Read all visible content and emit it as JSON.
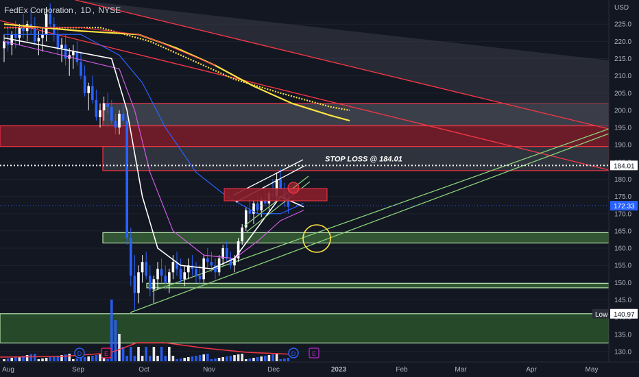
{
  "header": {
    "symbol_name": "FedEx Corporation",
    "interval": "1D",
    "exchange": "NYSE"
  },
  "chart_data": {
    "type": "candlestick",
    "currency_label": "USD",
    "y_axis": {
      "min": 127,
      "max": 232,
      "ticks": [
        130,
        135,
        140,
        145,
        150,
        155,
        160,
        165,
        170,
        175,
        180,
        185,
        190,
        195,
        200,
        205,
        210,
        215,
        220,
        225
      ]
    },
    "x_axis": {
      "labels": [
        "Aug",
        "Sep",
        "Oct",
        "Nov",
        "Dec",
        "2023",
        "Feb",
        "Mar",
        "Apr",
        "May"
      ]
    },
    "price_tags": [
      {
        "label": "",
        "value": "184.01",
        "price": 184.01,
        "color": "#ffffff",
        "text_color": "#131722"
      },
      {
        "label": "",
        "value": "172.33",
        "price": 172.33,
        "color": "#2962ff",
        "text_color": "#ffffff"
      },
      {
        "label": "Low",
        "value": "140.97",
        "price": 140.97,
        "color": "#ffffff",
        "text_color": "#131722"
      }
    ],
    "annotations": [
      {
        "text": "STOP LOSS @ 184.01",
        "price": 184.01
      }
    ],
    "zones": [
      {
        "name": "resistance-gray-upper",
        "from": 195.5,
        "to": 202,
        "color": "#4a4d57"
      },
      {
        "name": "resistance-red",
        "from": 189.5,
        "to": 195.5,
        "color": "#8b1e2b"
      },
      {
        "name": "stop-loss-band",
        "from": 182.5,
        "to": 189.5,
        "color": "#3a3d47"
      },
      {
        "name": "support-green-mid",
        "from": 161.5,
        "to": 164.5,
        "color": "#3d6b3a"
      },
      {
        "name": "support-green-low",
        "from": 148.5,
        "to": 149.8,
        "color": "#3d6b3a"
      },
      {
        "name": "support-green-base",
        "from": 132.5,
        "to": 140.97,
        "color": "#2e5b2c"
      }
    ],
    "event_markers": [
      {
        "letter": "D",
        "color": "#2962ff"
      },
      {
        "letter": "E",
        "color": "#e91e63"
      },
      {
        "letter": "D",
        "color": "#2962ff"
      },
      {
        "letter": "E",
        "color": "#9c27b0"
      }
    ],
    "candles": [
      [
        218,
        222,
        214,
        220
      ],
      [
        220,
        224,
        217,
        219
      ],
      [
        219,
        223,
        216,
        222
      ],
      [
        222,
        226,
        218,
        221
      ],
      [
        221,
        225,
        219,
        224
      ],
      [
        224,
        228,
        221,
        223
      ],
      [
        223,
        226,
        220,
        225
      ],
      [
        225,
        229,
        222,
        224
      ],
      [
        224,
        227,
        219,
        220
      ],
      [
        220,
        223,
        216,
        221
      ],
      [
        221,
        224,
        217,
        222
      ],
      [
        222,
        230,
        220,
        228
      ],
      [
        228,
        231,
        224,
        225
      ],
      [
        225,
        227,
        220,
        222
      ],
      [
        222,
        224,
        216,
        218
      ],
      [
        218,
        221,
        214,
        219
      ],
      [
        219,
        222,
        213,
        215
      ],
      [
        215,
        218,
        210,
        216
      ],
      [
        216,
        219,
        212,
        217
      ],
      [
        217,
        220,
        213,
        214
      ],
      [
        214,
        217,
        209,
        210
      ],
      [
        210,
        213,
        204,
        205
      ],
      [
        205,
        208,
        200,
        207
      ],
      [
        207,
        210,
        202,
        203
      ],
      [
        203,
        206,
        197,
        198
      ],
      [
        198,
        202,
        195,
        200
      ],
      [
        200,
        204,
        197,
        202
      ],
      [
        202,
        205,
        199,
        201
      ],
      [
        201,
        203,
        196,
        197
      ],
      [
        197,
        199,
        193,
        195
      ],
      [
        195,
        200,
        193,
        199
      ],
      [
        199,
        202,
        196,
        197
      ],
      [
        197,
        199,
        161,
        163
      ],
      [
        163,
        166,
        149,
        152
      ],
      [
        152,
        158,
        142,
        147
      ],
      [
        147,
        155,
        144,
        153
      ],
      [
        153,
        158,
        150,
        156
      ],
      [
        156,
        159,
        151,
        152
      ],
      [
        152,
        155,
        146,
        148
      ],
      [
        148,
        152,
        144,
        151
      ],
      [
        151,
        156,
        148,
        154
      ],
      [
        154,
        157,
        150,
        152
      ],
      [
        152,
        155,
        148,
        150
      ],
      [
        150,
        154,
        147,
        153
      ],
      [
        153,
        158,
        151,
        156
      ],
      [
        156,
        159,
        152,
        154
      ],
      [
        154,
        157,
        150,
        151
      ],
      [
        151,
        155,
        149,
        153
      ],
      [
        153,
        157,
        151,
        155
      ],
      [
        155,
        158,
        152,
        154
      ],
      [
        154,
        156,
        150,
        152
      ],
      [
        152,
        155,
        149,
        151
      ],
      [
        151,
        158,
        150,
        157
      ],
      [
        157,
        160,
        154,
        156
      ],
      [
        156,
        159,
        153,
        155
      ],
      [
        155,
        157,
        151,
        153
      ],
      [
        153,
        158,
        152,
        157
      ],
      [
        157,
        161,
        155,
        160
      ],
      [
        160,
        162,
        156,
        157
      ],
      [
        157,
        159,
        154,
        155
      ],
      [
        155,
        158,
        153,
        157
      ],
      [
        157,
        163,
        156,
        162
      ],
      [
        162,
        167,
        161,
        166
      ],
      [
        166,
        172,
        165,
        171
      ],
      [
        171,
        176,
        168,
        170
      ],
      [
        170,
        174,
        167,
        173
      ],
      [
        173,
        176,
        170,
        171
      ],
      [
        171,
        175,
        169,
        174
      ],
      [
        174,
        178,
        172,
        173
      ],
      [
        173,
        177,
        171,
        176
      ],
      [
        176,
        180,
        174,
        175
      ],
      [
        175,
        182,
        174,
        180
      ],
      [
        180,
        183,
        176,
        177
      ],
      [
        177,
        179,
        172,
        174
      ],
      [
        174,
        176,
        170,
        172
      ]
    ],
    "moving_averages": [
      {
        "name": "ma-yellow",
        "color": "#ffe342",
        "points": [
          [
            0,
            225
          ],
          [
            20,
            223
          ],
          [
            35,
            222
          ],
          [
            45,
            218
          ],
          [
            55,
            213
          ],
          [
            65,
            207
          ],
          [
            75,
            202
          ],
          [
            85,
            198.5
          ],
          [
            90,
            197
          ]
        ]
      },
      {
        "name": "ma-yellow-cross",
        "color": "#ffe342",
        "points": [
          [
            0,
            224
          ],
          [
            25,
            224
          ],
          [
            38,
            220
          ],
          [
            50,
            214
          ],
          [
            60,
            209
          ],
          [
            72,
            205
          ],
          [
            85,
            201
          ],
          [
            90,
            200
          ]
        ]
      },
      {
        "name": "ma-red",
        "color": "#f23645",
        "points": [
          [
            0,
            224
          ],
          [
            20,
            224
          ],
          [
            35,
            222
          ],
          [
            40,
            220
          ],
          [
            55,
            213
          ]
        ]
      },
      {
        "name": "ma-blue",
        "color": "#2962ff",
        "points": [
          [
            0,
            222
          ],
          [
            20,
            222
          ],
          [
            30,
            216
          ],
          [
            36,
            208
          ],
          [
            42,
            195
          ],
          [
            50,
            182
          ],
          [
            58,
            175
          ],
          [
            66,
            170
          ],
          [
            72,
            170
          ],
          [
            78,
            173
          ]
        ]
      },
      {
        "name": "ma-magenta",
        "color": "#d05ce3",
        "points": [
          [
            0,
            220
          ],
          [
            30,
            212
          ],
          [
            34,
            200
          ],
          [
            38,
            182
          ],
          [
            44,
            165
          ],
          [
            52,
            158
          ],
          [
            60,
            157
          ],
          [
            66,
            162
          ],
          [
            72,
            168
          ],
          [
            78,
            171
          ]
        ]
      },
      {
        "name": "ma-white",
        "color": "#ffffff",
        "points": [
          [
            0,
            221
          ],
          [
            28,
            215
          ],
          [
            32,
            200
          ],
          [
            36,
            175
          ],
          [
            40,
            160
          ],
          [
            46,
            155
          ],
          [
            54,
            154
          ],
          [
            60,
            157
          ],
          [
            66,
            166
          ],
          [
            72,
            175
          ],
          [
            78,
            172
          ]
        ]
      }
    ]
  }
}
